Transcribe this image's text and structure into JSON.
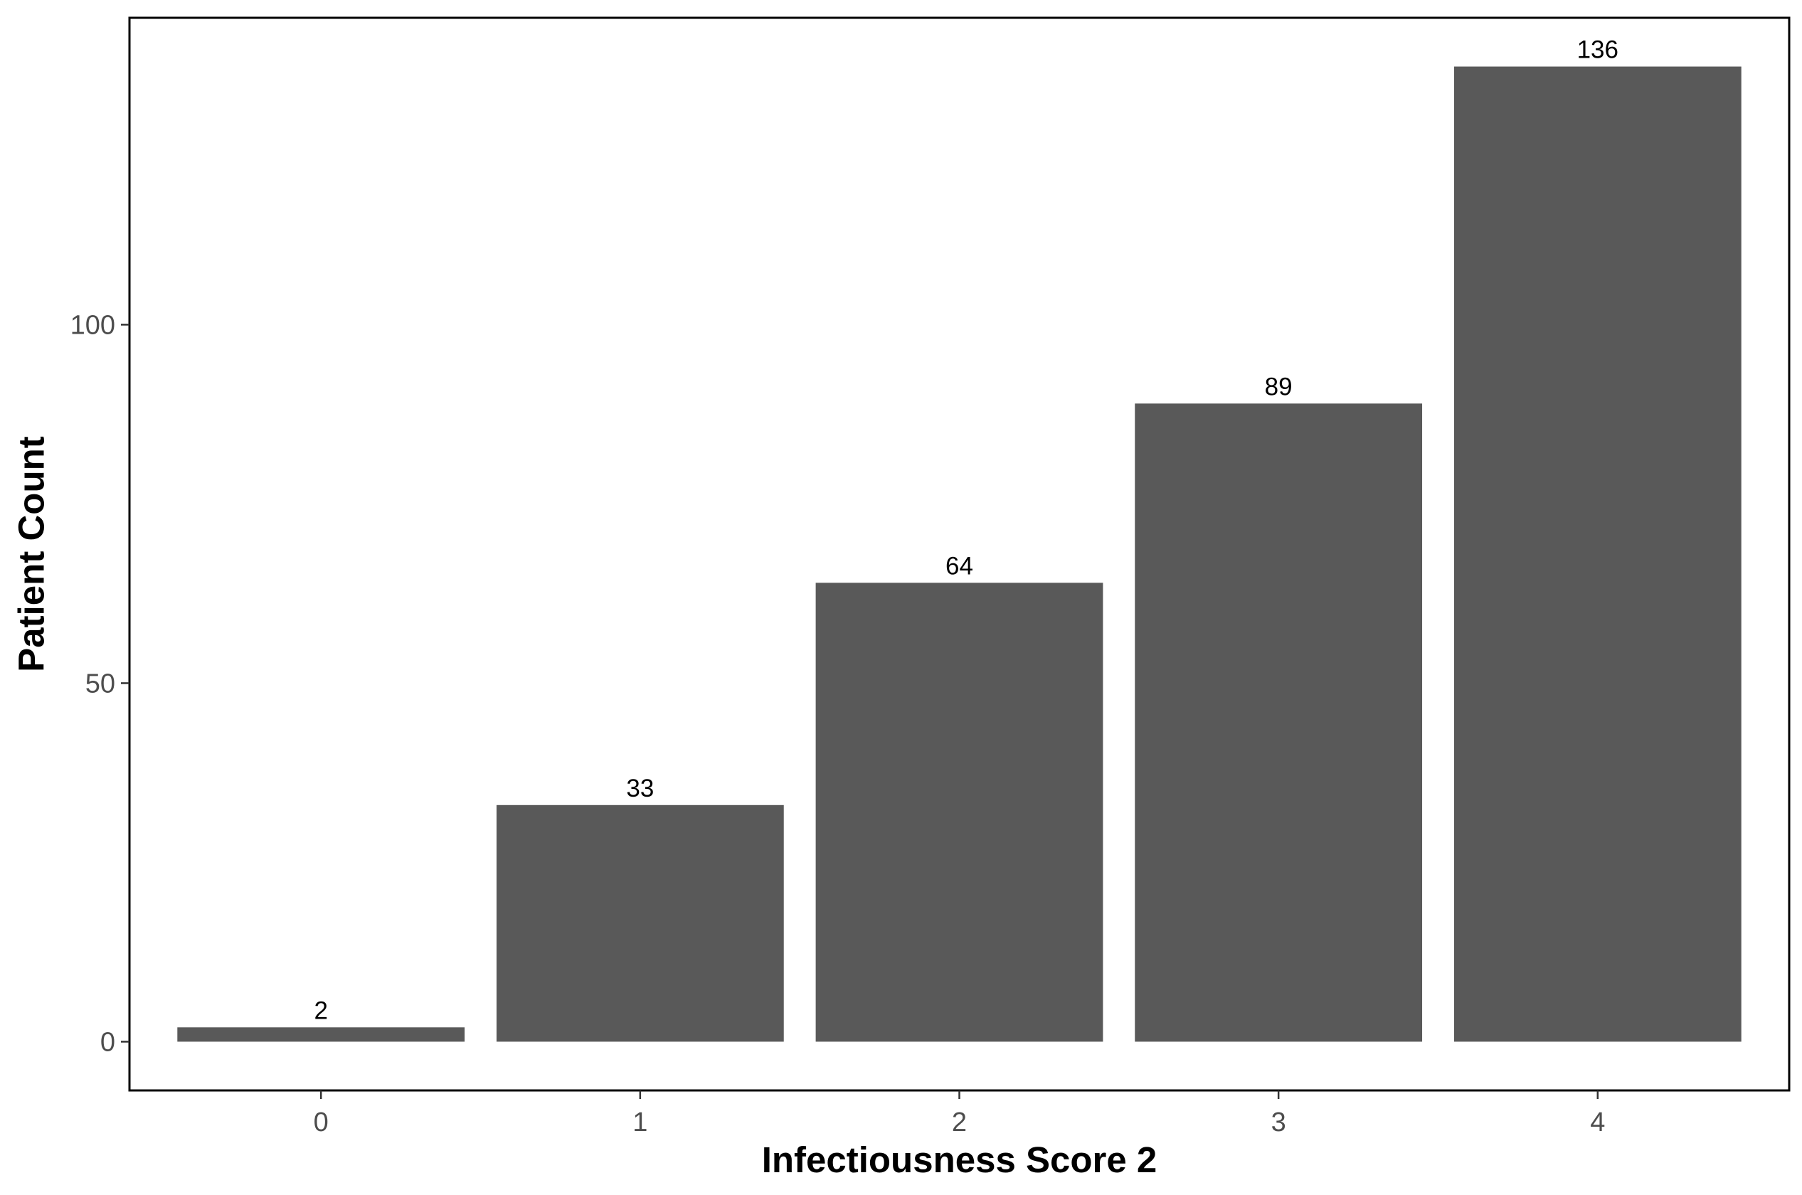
{
  "chart_data": {
    "type": "bar",
    "title": "",
    "xlabel": "Infectiousness Score 2",
    "ylabel": "Patient Count",
    "categories": [
      "0",
      "1",
      "2",
      "3",
      "4"
    ],
    "values": [
      2,
      33,
      64,
      89,
      136
    ],
    "data_labels": [
      "2",
      "33",
      "64",
      "89",
      "136"
    ],
    "y_ticks": [
      0,
      50,
      100
    ],
    "y_tick_labels": [
      "0",
      "50",
      "100"
    ],
    "ylim": [
      -6.8,
      142.8
    ],
    "grid": false,
    "legend": "none",
    "colors": {
      "bar": "#595959",
      "panel_border": "#000000",
      "tick_text": "#4d4d4d",
      "tick_mark": "#333333",
      "label_text": "#000000",
      "background": "#ffffff"
    }
  }
}
